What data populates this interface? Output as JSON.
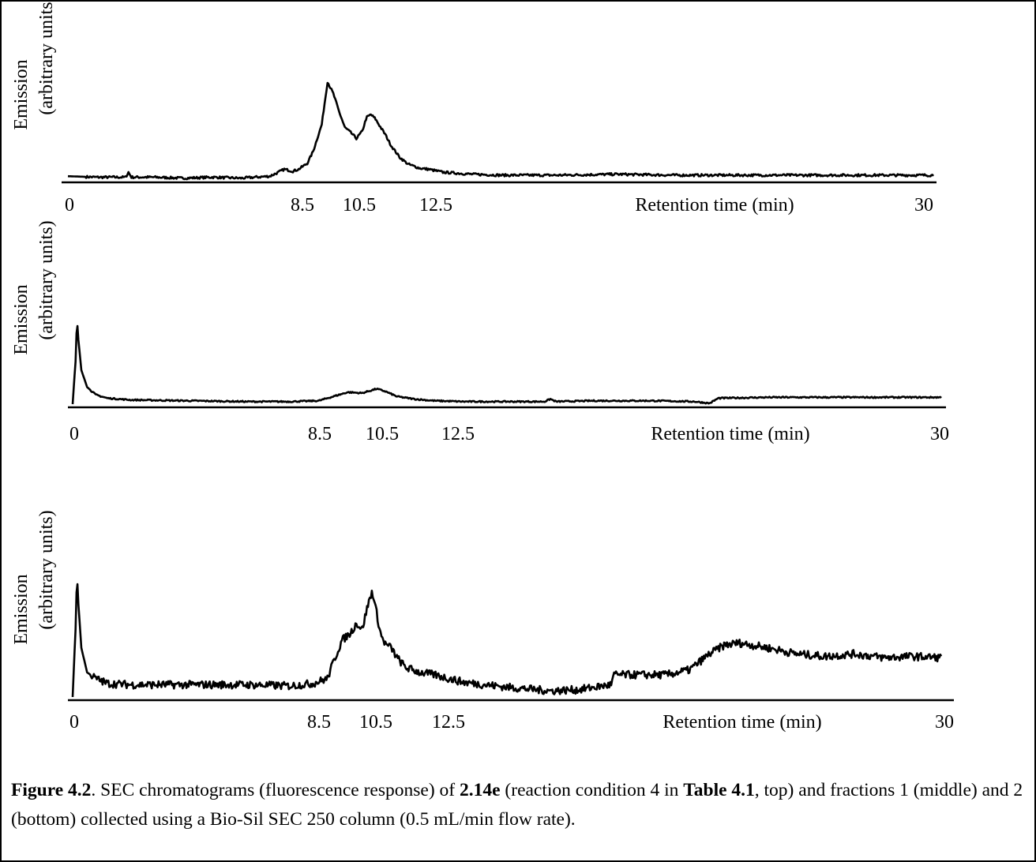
{
  "chart_data": [
    {
      "type": "line",
      "panel": "top",
      "ylabel_line1": "Emission",
      "ylabel_line2": "(arbitrary units)",
      "xlabel": "Retention time (min)",
      "xlim": [
        0,
        30
      ],
      "ylim": [
        0,
        100
      ],
      "x_ticks": [
        "0",
        "8.5",
        "10.5",
        "12.5",
        "30"
      ],
      "series": [
        {
          "x": [
            0,
            1,
            2,
            2.1,
            2.2,
            3,
            4,
            5,
            6,
            6.5,
            7,
            7.3,
            7.5,
            7.8,
            8,
            8.3,
            8.5,
            8.8,
            9.0,
            9.2,
            9.4,
            9.5,
            9.6,
            9.8,
            10.0,
            10.2,
            10.35,
            10.5,
            10.65,
            10.8,
            11.0,
            11.2,
            11.5,
            11.8,
            12.2,
            12.5,
            13,
            14,
            15,
            17,
            19,
            21,
            23,
            25,
            27,
            29,
            30
          ],
          "y": [
            3,
            2,
            2,
            7,
            2,
            2,
            1,
            2,
            1,
            2,
            3,
            7,
            10,
            8,
            10,
            16,
            28,
            55,
            98,
            86,
            68,
            60,
            52,
            47,
            41,
            48,
            62,
            65,
            61,
            54,
            45,
            34,
            22,
            15,
            11,
            10,
            7,
            5,
            4,
            4,
            5,
            4,
            4,
            4,
            4,
            4,
            4
          ]
        }
      ]
    },
    {
      "type": "line",
      "panel": "middle",
      "ylabel_line1": "Emission",
      "ylabel_line2": "(arbitrary units)",
      "xlabel": "Retention time (min)",
      "xlim": [
        0,
        30
      ],
      "ylim": [
        0,
        100
      ],
      "x_ticks": [
        "0",
        "8.5",
        "10.5",
        "12.5",
        "30"
      ],
      "series": [
        {
          "x": [
            0,
            0.1,
            0.15,
            0.2,
            0.3,
            0.5,
            0.8,
            1.2,
            2,
            4,
            6,
            7.5,
            8.5,
            9.0,
            9.5,
            10.0,
            10.3,
            10.5,
            10.8,
            11.2,
            11.8,
            12.5,
            13.5,
            15,
            16.3,
            16.5,
            16.7,
            18,
            20,
            21.5,
            22,
            22.3,
            24,
            26,
            28,
            30
          ],
          "y": [
            0,
            50,
            100,
            75,
            40,
            20,
            11,
            7,
            5,
            4,
            3,
            3,
            4,
            9,
            14,
            13,
            16,
            18,
            15,
            9,
            6,
            4,
            3,
            3,
            3,
            6,
            3,
            4,
            4,
            3,
            1,
            7,
            8,
            8,
            8,
            8
          ]
        }
      ]
    },
    {
      "type": "line",
      "panel": "bottom",
      "ylabel_line1": "Emission",
      "ylabel_line2": "(arbitrary units)",
      "xlabel": "Retention time (min)",
      "xlim": [
        0,
        30
      ],
      "ylim": [
        0,
        100
      ],
      "x_ticks": [
        "0",
        "8.5",
        "10.5",
        "12.5",
        "30"
      ],
      "series": [
        {
          "x": [
            0,
            0.1,
            0.15,
            0.2,
            0.3,
            0.5,
            0.8,
            1.2,
            2,
            4,
            6,
            7.5,
            8.3,
            8.8,
            9.0,
            9.3,
            9.6,
            9.8,
            10.0,
            10.2,
            10.35,
            10.5,
            10.65,
            10.8,
            11.0,
            11.2,
            11.5,
            12,
            12.5,
            13.5,
            15,
            16.5,
            17.5,
            18.6,
            18.7,
            19.5,
            20.5,
            21.3,
            22.0,
            22.5,
            23,
            24,
            25,
            26,
            27,
            28,
            29,
            30
          ],
          "y": [
            0,
            55,
            100,
            75,
            40,
            20,
            15,
            11,
            10,
            10,
            10,
            9,
            11,
            15,
            28,
            46,
            52,
            60,
            55,
            75,
            86,
            68,
            50,
            43,
            40,
            32,
            24,
            20,
            18,
            12,
            8,
            5,
            6,
            10,
            18,
            18,
            18,
            22,
            35,
            42,
            44,
            40,
            35,
            33,
            35,
            32,
            33,
            32
          ]
        }
      ]
    }
  ],
  "caption": {
    "fig_label": "Figure 4.2",
    "text_1": ". SEC chromatograms (fluorescence response) of ",
    "compound": "2.14e",
    "text_2": " (reaction condition 4 in ",
    "table_ref": "Table 4.1",
    "text_3": ", top) and fractions 1 (middle) and 2 (bottom) collected using a Bio-Sil SEC 250 column (0.5 mL/min flow rate)."
  }
}
